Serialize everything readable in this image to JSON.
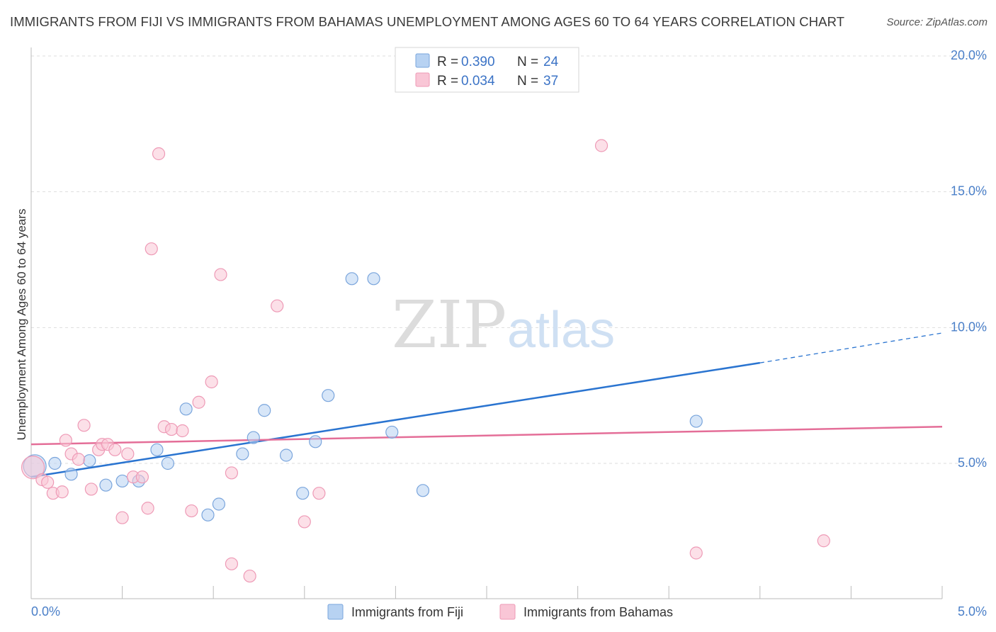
{
  "title": "IMMIGRANTS FROM FIJI VS IMMIGRANTS FROM BAHAMAS UNEMPLOYMENT AMONG AGES 60 TO 64 YEARS CORRELATION CHART",
  "source": "Source: ZipAtlas.com",
  "watermark": {
    "zip": "ZIP",
    "atlas": "atlas"
  },
  "colors": {
    "fiji_fill": "#b7d2f2",
    "fiji_stroke": "#7aa5dc",
    "fiji_line": "#2a74d0",
    "bahamas_fill": "#f9c6d6",
    "bahamas_stroke": "#ee9ab6",
    "bahamas_line": "#e46e98",
    "grid": "#dddddd",
    "axis_label": "#4a7fc8"
  },
  "legend_top": [
    {
      "series": "fiji",
      "r_label": "R = ",
      "r_value": "0.390",
      "n_label": "N = ",
      "n_value": "24"
    },
    {
      "series": "bahamas",
      "r_label": "R = ",
      "r_value": "0.034",
      "n_label": "N = ",
      "n_value": "37"
    }
  ],
  "chart_data": {
    "type": "scatter",
    "title": "IMMIGRANTS FROM FIJI VS IMMIGRANTS FROM BAHAMAS UNEMPLOYMENT AMONG AGES 60 TO 64 YEARS CORRELATION CHART",
    "xlabel": "",
    "ylabel": "Unemployment Among Ages 60 to 64 years",
    "xlim": [
      0,
      5.0
    ],
    "ylim": [
      0,
      20.8
    ],
    "x_tick_labels": [
      "0.0%",
      "5.0%"
    ],
    "y_ticks": [
      5,
      10,
      15,
      20
    ],
    "y_tick_labels": [
      "5.0%",
      "10.0%",
      "15.0%",
      "20.0%"
    ],
    "grid": true,
    "legend_position": "top-center",
    "series": [
      {
        "name": "Immigrants from Fiji",
        "key": "fiji",
        "r": 0.39,
        "n": 24,
        "trend": {
          "x_start": 0.0,
          "y_start": 4.5,
          "x_solid_end": 4.0,
          "y_solid_end": 8.7,
          "x_end": 5.0,
          "y_end": 9.8
        },
        "points": [
          {
            "x": 0.02,
            "y": 4.9,
            "big": true
          },
          {
            "x": 0.13,
            "y": 5.0
          },
          {
            "x": 0.22,
            "y": 4.6
          },
          {
            "x": 0.32,
            "y": 5.1
          },
          {
            "x": 0.41,
            "y": 4.2
          },
          {
            "x": 0.5,
            "y": 4.35
          },
          {
            "x": 0.59,
            "y": 4.35
          },
          {
            "x": 0.69,
            "y": 5.5
          },
          {
            "x": 0.75,
            "y": 5.0
          },
          {
            "x": 0.85,
            "y": 7.0
          },
          {
            "x": 0.97,
            "y": 3.1
          },
          {
            "x": 1.03,
            "y": 3.5
          },
          {
            "x": 1.16,
            "y": 5.35
          },
          {
            "x": 1.22,
            "y": 5.95
          },
          {
            "x": 1.28,
            "y": 6.95
          },
          {
            "x": 1.4,
            "y": 5.3
          },
          {
            "x": 1.49,
            "y": 3.9
          },
          {
            "x": 1.56,
            "y": 5.8
          },
          {
            "x": 1.63,
            "y": 7.5
          },
          {
            "x": 1.76,
            "y": 11.8
          },
          {
            "x": 1.88,
            "y": 11.8
          },
          {
            "x": 1.98,
            "y": 6.15
          },
          {
            "x": 2.15,
            "y": 4.0
          },
          {
            "x": 3.65,
            "y": 6.55
          }
        ]
      },
      {
        "name": "Immigrants from Bahamas",
        "key": "bahamas",
        "r": 0.034,
        "n": 37,
        "trend": {
          "x_start": 0.0,
          "y_start": 5.7,
          "x_end": 5.0,
          "y_end": 6.35
        },
        "points": [
          {
            "x": 0.01,
            "y": 4.85,
            "big": true
          },
          {
            "x": 0.06,
            "y": 4.4
          },
          {
            "x": 0.09,
            "y": 4.3
          },
          {
            "x": 0.12,
            "y": 3.9
          },
          {
            "x": 0.17,
            "y": 3.95
          },
          {
            "x": 0.19,
            "y": 5.85
          },
          {
            "x": 0.22,
            "y": 5.35
          },
          {
            "x": 0.26,
            "y": 5.15
          },
          {
            "x": 0.29,
            "y": 6.4
          },
          {
            "x": 0.33,
            "y": 4.05
          },
          {
            "x": 0.37,
            "y": 5.5
          },
          {
            "x": 0.39,
            "y": 5.7
          },
          {
            "x": 0.42,
            "y": 5.7
          },
          {
            "x": 0.46,
            "y": 5.5
          },
          {
            "x": 0.5,
            "y": 3.0
          },
          {
            "x": 0.53,
            "y": 5.35
          },
          {
            "x": 0.56,
            "y": 4.5
          },
          {
            "x": 0.61,
            "y": 4.5
          },
          {
            "x": 0.64,
            "y": 3.35
          },
          {
            "x": 0.66,
            "y": 12.9
          },
          {
            "x": 0.7,
            "y": 16.4
          },
          {
            "x": 0.73,
            "y": 6.35
          },
          {
            "x": 0.77,
            "y": 6.25
          },
          {
            "x": 0.83,
            "y": 6.2
          },
          {
            "x": 0.88,
            "y": 3.25
          },
          {
            "x": 0.92,
            "y": 7.25
          },
          {
            "x": 0.99,
            "y": 8.0
          },
          {
            "x": 1.04,
            "y": 11.95
          },
          {
            "x": 1.1,
            "y": 4.65
          },
          {
            "x": 1.1,
            "y": 1.3
          },
          {
            "x": 1.2,
            "y": 0.85
          },
          {
            "x": 1.35,
            "y": 10.8
          },
          {
            "x": 1.5,
            "y": 2.85
          },
          {
            "x": 1.58,
            "y": 3.9
          },
          {
            "x": 3.13,
            "y": 16.7
          },
          {
            "x": 3.65,
            "y": 1.7
          },
          {
            "x": 4.35,
            "y": 2.15
          }
        ]
      }
    ]
  }
}
